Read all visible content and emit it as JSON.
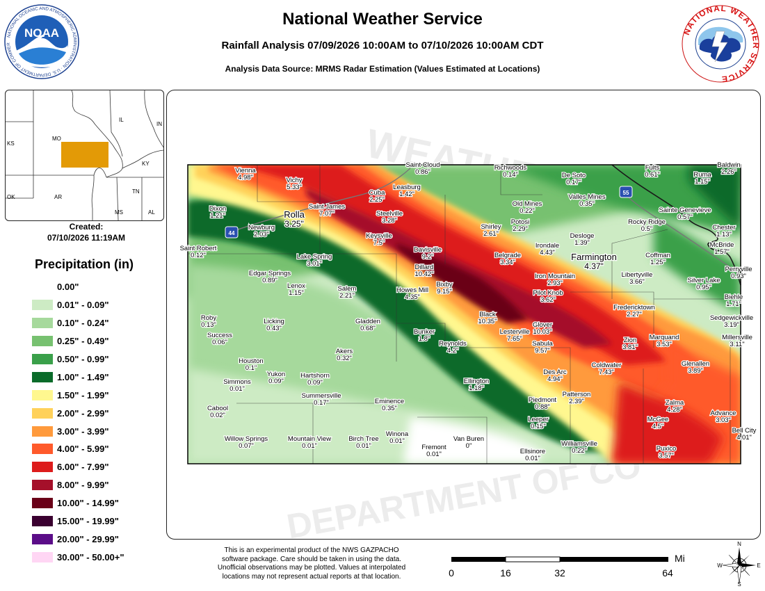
{
  "header": {
    "title": "National Weather Service",
    "subtitle": "Rainfall Analysis 07/09/2026 10:00AM to 07/10/2026 10:00AM CDT",
    "source": "Analysis Data Source: MRMS Radar Estimation (Values Estimated at Locations)"
  },
  "logos": {
    "noaa_ring_text": "NATIONAL OCEANIC AND ATMOSPHERIC ADMINISTRATION · U.S. DEPARTMENT OF COMMERCE",
    "noaa_center": "NOAA",
    "nws_ring_text": "NATIONAL WEATHER SERVICE"
  },
  "created": {
    "label": "Created:",
    "value": "07/10/2026 11:19AM"
  },
  "inset_map": {
    "states": [
      "IL",
      "IN",
      "MO",
      "KS",
      "KY",
      "TN",
      "OK",
      "AR",
      "MS",
      "AL"
    ],
    "highlight_color": "#e39a06"
  },
  "legend": {
    "title": "Precipitation (in)",
    "items": [
      {
        "label": "0.00\"",
        "color": "#ffffff"
      },
      {
        "label": "0.01\" - 0.09\"",
        "color": "#cdebc4"
      },
      {
        "label": "0.10\" - 0.24\"",
        "color": "#a6d99c"
      },
      {
        "label": "0.25\" - 0.49\"",
        "color": "#77c170"
      },
      {
        "label": "0.50\" - 0.99\"",
        "color": "#3aa04a"
      },
      {
        "label": "1.00\" - 1.49\"",
        "color": "#0a6b2a"
      },
      {
        "label": "1.50\" - 1.99\"",
        "color": "#fff78f"
      },
      {
        "label": "2.00\" - 2.99\"",
        "color": "#ffd15a"
      },
      {
        "label": "3.00\" - 3.99\"",
        "color": "#ff9a3c"
      },
      {
        "label": "4.00\" - 5.99\"",
        "color": "#ff5a2b"
      },
      {
        "label": "6.00\" - 7.99\"",
        "color": "#dd1c1c"
      },
      {
        "label": "8.00\" - 9.99\"",
        "color": "#a5102a"
      },
      {
        "label": "10.00\" - 14.99\"",
        "color": "#6a0018"
      },
      {
        "label": "15.00\" - 19.99\"",
        "color": "#3a0030"
      },
      {
        "label": "20.00\" - 29.99\"",
        "color": "#5b0d88"
      },
      {
        "label": "30.00\" - 50.00+\"",
        "color": "#ffd6f4"
      }
    ]
  },
  "map": {
    "watermark_top": "WEATHER",
    "watermark_bottom": "DEPARTMENT OF CO",
    "highway_labels": [
      "44",
      "55"
    ],
    "sites": [
      {
        "name": "Vienna",
        "value": "4.98\""
      },
      {
        "name": "Vichy",
        "value": "5.33\""
      },
      {
        "name": "Dixon",
        "value": "1.21\""
      },
      {
        "name": "Rolla",
        "value": "3.25\""
      },
      {
        "name": "Newburg",
        "value": "2.03\""
      },
      {
        "name": "Saint Robert",
        "value": "0.12\""
      },
      {
        "name": "Saint James",
        "value": "7.07\""
      },
      {
        "name": "Cuba",
        "value": "2.25\""
      },
      {
        "name": "Leasburg",
        "value": "1.42\""
      },
      {
        "name": "Saint Cloud",
        "value": "0.86\""
      },
      {
        "name": "Steelville",
        "value": "3.28\""
      },
      {
        "name": "Keysville",
        "value": "7.5\""
      },
      {
        "name": "Lake Spring",
        "value": "3.01\""
      },
      {
        "name": "Edgar Springs",
        "value": "0.89\""
      },
      {
        "name": "Lenox",
        "value": "1.15\""
      },
      {
        "name": "Salem",
        "value": "2.21\""
      },
      {
        "name": "Davisville",
        "value": "9.2\""
      },
      {
        "name": "Dillard",
        "value": "10.42\""
      },
      {
        "name": "Howes Mill",
        "value": "4.35\""
      },
      {
        "name": "Bixby",
        "value": "9.15\""
      },
      {
        "name": "Richwoods",
        "value": "0.14\""
      },
      {
        "name": "De Soto",
        "value": "0.17\""
      },
      {
        "name": "Old Mines",
        "value": "0.22\""
      },
      {
        "name": "Valles Mines",
        "value": "0.35\""
      },
      {
        "name": "Shirley",
        "value": "2.61\""
      },
      {
        "name": "Potosi",
        "value": "2.29\""
      },
      {
        "name": "Desloge",
        "value": "1.39\""
      },
      {
        "name": "Irondale",
        "value": "4.43\""
      },
      {
        "name": "Belgrade",
        "value": "3.34\""
      },
      {
        "name": "Farmington",
        "value": "4.37\""
      },
      {
        "name": "Iron Mountain",
        "value": "2.93\""
      },
      {
        "name": "Pilot Knob",
        "value": "3.62\""
      },
      {
        "name": "Fults",
        "value": "0.61\""
      },
      {
        "name": "Baldwin",
        "value": "2.26\""
      },
      {
        "name": "Ruma",
        "value": "1.15\""
      },
      {
        "name": "Sainte Genevieve",
        "value": "0.57\""
      },
      {
        "name": "Rocky Ridge",
        "value": "0.5\""
      },
      {
        "name": "Chester",
        "value": "1.13\""
      },
      {
        "name": "McBride",
        "value": "1.57\""
      },
      {
        "name": "Coffman",
        "value": "1.25\""
      },
      {
        "name": "Libertyville",
        "value": "3.66\""
      },
      {
        "name": "Perryville",
        "value": "0.93\""
      },
      {
        "name": "Silver Lake",
        "value": "0.95\""
      },
      {
        "name": "Biehle",
        "value": "1.71\""
      },
      {
        "name": "Fredericktown",
        "value": "2.27\""
      },
      {
        "name": "Sedgewickville",
        "value": "3.19\""
      },
      {
        "name": "Millersville",
        "value": "3.11\""
      },
      {
        "name": "Roby",
        "value": "0.13\""
      },
      {
        "name": "Success",
        "value": "0.06\""
      },
      {
        "name": "Licking",
        "value": "0.43\""
      },
      {
        "name": "Gladden",
        "value": "0.68\""
      },
      {
        "name": "Bunker",
        "value": "1.8\""
      },
      {
        "name": "Black",
        "value": "10.35\""
      },
      {
        "name": "Glover",
        "value": "10.03\""
      },
      {
        "name": "Lesterville",
        "value": "7.65\""
      },
      {
        "name": "Reynolds",
        "value": "4.2\""
      },
      {
        "name": "Sabula",
        "value": "9.57\""
      },
      {
        "name": "Zion",
        "value": "3.81\""
      },
      {
        "name": "Marquand",
        "value": "3.53\""
      },
      {
        "name": "Akers",
        "value": "0.32\""
      },
      {
        "name": "Houston",
        "value": "0.1\""
      },
      {
        "name": "Yukon",
        "value": "0.09\""
      },
      {
        "name": "Hartshorn",
        "value": "0.09\""
      },
      {
        "name": "Simmons",
        "value": "0.01\""
      },
      {
        "name": "Summersville",
        "value": "0.17\""
      },
      {
        "name": "Ellington",
        "value": "1.18\""
      },
      {
        "name": "Des Arc",
        "value": "4.94\""
      },
      {
        "name": "Coldwater",
        "value": "7.43\""
      },
      {
        "name": "Glenallen",
        "value": "3.89\""
      },
      {
        "name": "Cabool",
        "value": "0.02\""
      },
      {
        "name": "Eminence",
        "value": "0.35\""
      },
      {
        "name": "Piedmont",
        "value": "0.88\""
      },
      {
        "name": "Patterson",
        "value": "2.39\""
      },
      {
        "name": "Zalma",
        "value": "4.28\""
      },
      {
        "name": "Advance",
        "value": "3.03\""
      },
      {
        "name": "Leeper",
        "value": "0.15\""
      },
      {
        "name": "McGee",
        "value": "4.5\""
      },
      {
        "name": "Bell City",
        "value": "4.01\""
      },
      {
        "name": "Willow Springs",
        "value": "0.07\""
      },
      {
        "name": "Mountain View",
        "value": "0.01\""
      },
      {
        "name": "Birch Tree",
        "value": "0.01\""
      },
      {
        "name": "Winona",
        "value": "0.01\""
      },
      {
        "name": "Fremont",
        "value": "0.01\""
      },
      {
        "name": "Van Buren",
        "value": "0\""
      },
      {
        "name": "Williamsville",
        "value": "0.22\""
      },
      {
        "name": "Ellsinore",
        "value": "0.01\""
      },
      {
        "name": "Puxico",
        "value": "3.57\""
      }
    ]
  },
  "disclaimer": {
    "lines": [
      "This is an experimental product of the NWS GAZPACHO",
      "software package. Care should be taken in using the data.",
      "Unofficial observations may be plotted. Values at interpolated",
      "locations may not represent actual reports at that location."
    ]
  },
  "scale": {
    "unit": "Miles",
    "ticks": [
      "0",
      "16",
      "32",
      "64"
    ]
  },
  "compass": {
    "n": "N",
    "s": "S",
    "e": "E",
    "w": "W"
  }
}
